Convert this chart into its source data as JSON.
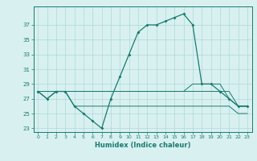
{
  "xlabel": "Humidex (Indice chaleur)",
  "x": [
    0,
    1,
    2,
    3,
    4,
    5,
    6,
    7,
    8,
    9,
    10,
    11,
    12,
    13,
    14,
    15,
    16,
    17,
    18,
    19,
    20,
    21,
    22,
    23
  ],
  "y_main": [
    28,
    27,
    28,
    28,
    26,
    25,
    24,
    23,
    27,
    30,
    33,
    36,
    37,
    37,
    37.5,
    38,
    38.5,
    37,
    29,
    29,
    28,
    27,
    26,
    26
  ],
  "y_line1": [
    28,
    28,
    28,
    28,
    28,
    28,
    28,
    28,
    28,
    28,
    28,
    28,
    28,
    28,
    28,
    28,
    28,
    28,
    28,
    28,
    28,
    28,
    26,
    26
  ],
  "y_line2": [
    28,
    28,
    28,
    28,
    28,
    28,
    28,
    28,
    28,
    28,
    28,
    28,
    28,
    28,
    28,
    28,
    28,
    29,
    29,
    29,
    29,
    27,
    26,
    26
  ],
  "y_line3": [
    28,
    27,
    28,
    28,
    26,
    26,
    26,
    26,
    26,
    26,
    26,
    26,
    26,
    26,
    26,
    26,
    26,
    26,
    26,
    26,
    26,
    26,
    25,
    25
  ],
  "line_color": "#1a7a6e",
  "bg_color": "#d8f0f0",
  "grid_color": "#afd8d8",
  "ylim": [
    22.5,
    39.5
  ],
  "yticks": [
    23,
    25,
    27,
    29,
    31,
    33,
    35,
    37
  ],
  "figsize": [
    3.2,
    2.0
  ],
  "dpi": 100
}
